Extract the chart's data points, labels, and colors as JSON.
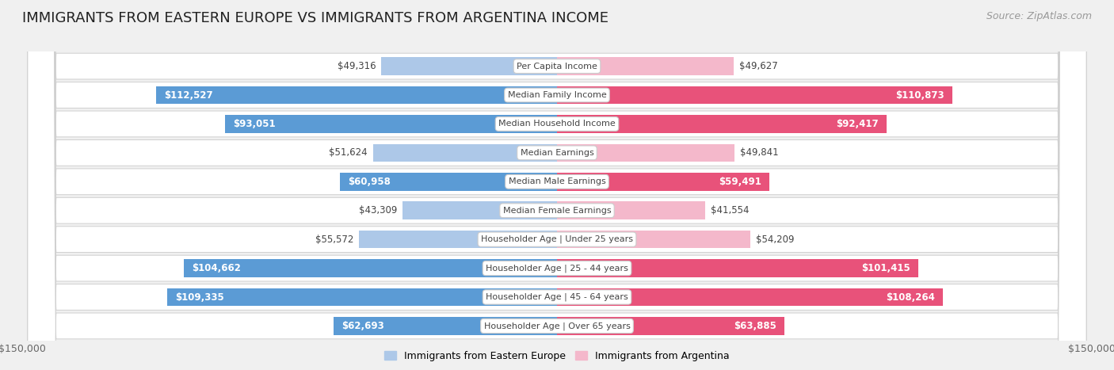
{
  "title": "IMMIGRANTS FROM EASTERN EUROPE VS IMMIGRANTS FROM ARGENTINA INCOME",
  "source": "Source: ZipAtlas.com",
  "categories": [
    "Per Capita Income",
    "Median Family Income",
    "Median Household Income",
    "Median Earnings",
    "Median Male Earnings",
    "Median Female Earnings",
    "Householder Age | Under 25 years",
    "Householder Age | 25 - 44 years",
    "Householder Age | 45 - 64 years",
    "Householder Age | Over 65 years"
  ],
  "eastern_europe": [
    49316,
    112527,
    93051,
    51624,
    60958,
    43309,
    55572,
    104662,
    109335,
    62693
  ],
  "argentina": [
    49627,
    110873,
    92417,
    49841,
    59491,
    41554,
    54209,
    101415,
    108264,
    63885
  ],
  "max_val": 150000,
  "blue_light": "#adc8e8",
  "blue_dark": "#5b9bd5",
  "pink_light": "#f4b8cb",
  "pink_dark": "#e8527a",
  "blue_label": "Immigrants from Eastern Europe",
  "pink_label": "Immigrants from Argentina",
  "bg_color": "#f0f0f0",
  "row_bg_color": "#ffffff",
  "label_bg_color": "#f2f2f2",
  "title_fontsize": 13,
  "source_fontsize": 9,
  "axis_label_fontsize": 9,
  "bar_label_fontsize": 8.5,
  "category_fontsize": 8,
  "inside_label_threshold": 0.38
}
